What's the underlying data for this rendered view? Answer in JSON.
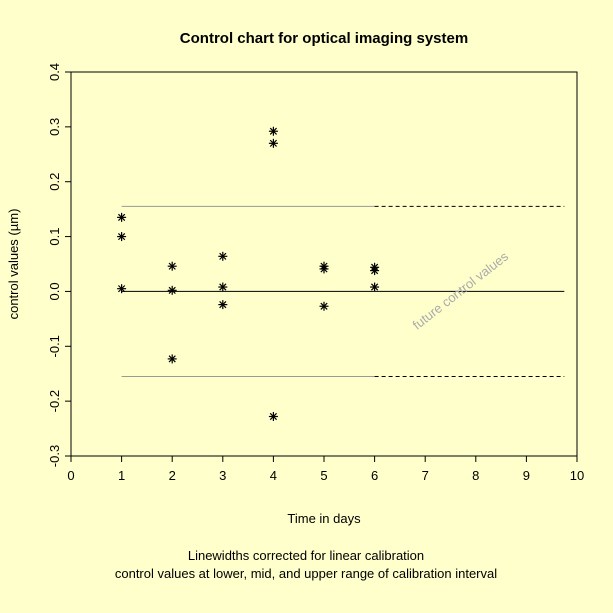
{
  "chart_data": {
    "type": "scatter",
    "title": "Control chart for optical imaging system",
    "xlabel": "Time in days",
    "ylabel": "control values (µm)",
    "xlim": [
      0,
      10
    ],
    "ylim": [
      -0.3,
      0.4
    ],
    "x_ticks": [
      "0",
      "1",
      "2",
      "3",
      "4",
      "5",
      "6",
      "7",
      "8",
      "9",
      "10"
    ],
    "y_ticks": [
      "-0.3",
      "-0.2",
      "-0.1",
      "0.0",
      "0.1",
      "0.2",
      "0.3",
      "0.4"
    ],
    "points": [
      {
        "x": 1,
        "y": 0.135
      },
      {
        "x": 1,
        "y": 0.1
      },
      {
        "x": 1,
        "y": 0.005
      },
      {
        "x": 2,
        "y": 0.046
      },
      {
        "x": 2,
        "y": 0.002
      },
      {
        "x": 2,
        "y": -0.123
      },
      {
        "x": 3,
        "y": 0.064
      },
      {
        "x": 3,
        "y": 0.008
      },
      {
        "x": 3,
        "y": -0.024
      },
      {
        "x": 4,
        "y": 0.292
      },
      {
        "x": 4,
        "y": 0.27
      },
      {
        "x": 4,
        "y": -0.228
      },
      {
        "x": 5,
        "y": 0.046
      },
      {
        "x": 5,
        "y": 0.041
      },
      {
        "x": 5,
        "y": -0.027
      },
      {
        "x": 6,
        "y": 0.044
      },
      {
        "x": 6,
        "y": 0.038
      },
      {
        "x": 6,
        "y": 0.008
      }
    ],
    "point_marker": "asterisk",
    "reference_lines": {
      "center": {
        "y": 0.0,
        "x_start": 1,
        "x_end": 9.75
      },
      "upper": {
        "y": 0.155,
        "solid_x": [
          1,
          6
        ],
        "dashed_x": [
          6,
          9.75
        ]
      },
      "lower": {
        "y": -0.155,
        "solid_x": [
          1,
          6
        ],
        "dashed_x": [
          6,
          9.75
        ]
      }
    },
    "annotation": {
      "text": "future control values",
      "x": 7.75,
      "y": -0.005,
      "angle": -38
    },
    "footnote": [
      "Linewidths corrected for linear calibration",
      "control values at lower, mid, and upper range of calibration interval"
    ],
    "colors": {
      "background": "#FFFFCC",
      "ink": "#000000",
      "limit_line": "#999999",
      "annotation": "#AAAAAA"
    }
  }
}
